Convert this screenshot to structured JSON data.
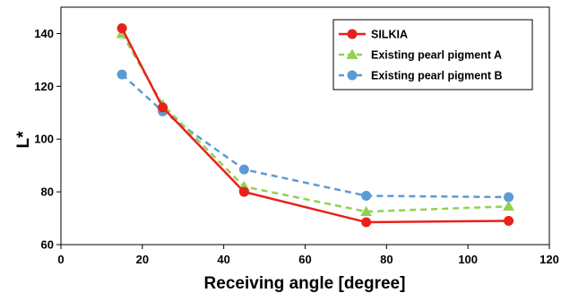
{
  "chart_data": {
    "type": "line",
    "title": "",
    "xlabel": "Receiving angle [degree]",
    "ylabel": "L*",
    "xlim": [
      0,
      120
    ],
    "ylim": [
      60,
      150
    ],
    "xticks": [
      "0",
      "20",
      "40",
      "60",
      "80",
      "100",
      "120"
    ],
    "yticks": [
      "60",
      "80",
      "100",
      "120",
      "140"
    ],
    "grid": false,
    "legend_position": "top-right",
    "x": [
      15,
      25,
      45,
      75,
      110
    ],
    "series": [
      {
        "name": "SILKIA",
        "values": [
          142,
          112,
          80,
          68.5,
          69
        ],
        "color": "#e8211d",
        "marker": "circle",
        "line": "solid"
      },
      {
        "name": "Existing pearl pigment A",
        "values": [
          140,
          113,
          82,
          72.5,
          74.5
        ],
        "color": "#92d050",
        "marker": "triangle",
        "line": "dashed"
      },
      {
        "name": "Existing pearl pigment B",
        "values": [
          124.5,
          110.5,
          88.5,
          78.5,
          78
        ],
        "color": "#5b9bd5",
        "marker": "circle",
        "line": "dashed"
      }
    ]
  }
}
